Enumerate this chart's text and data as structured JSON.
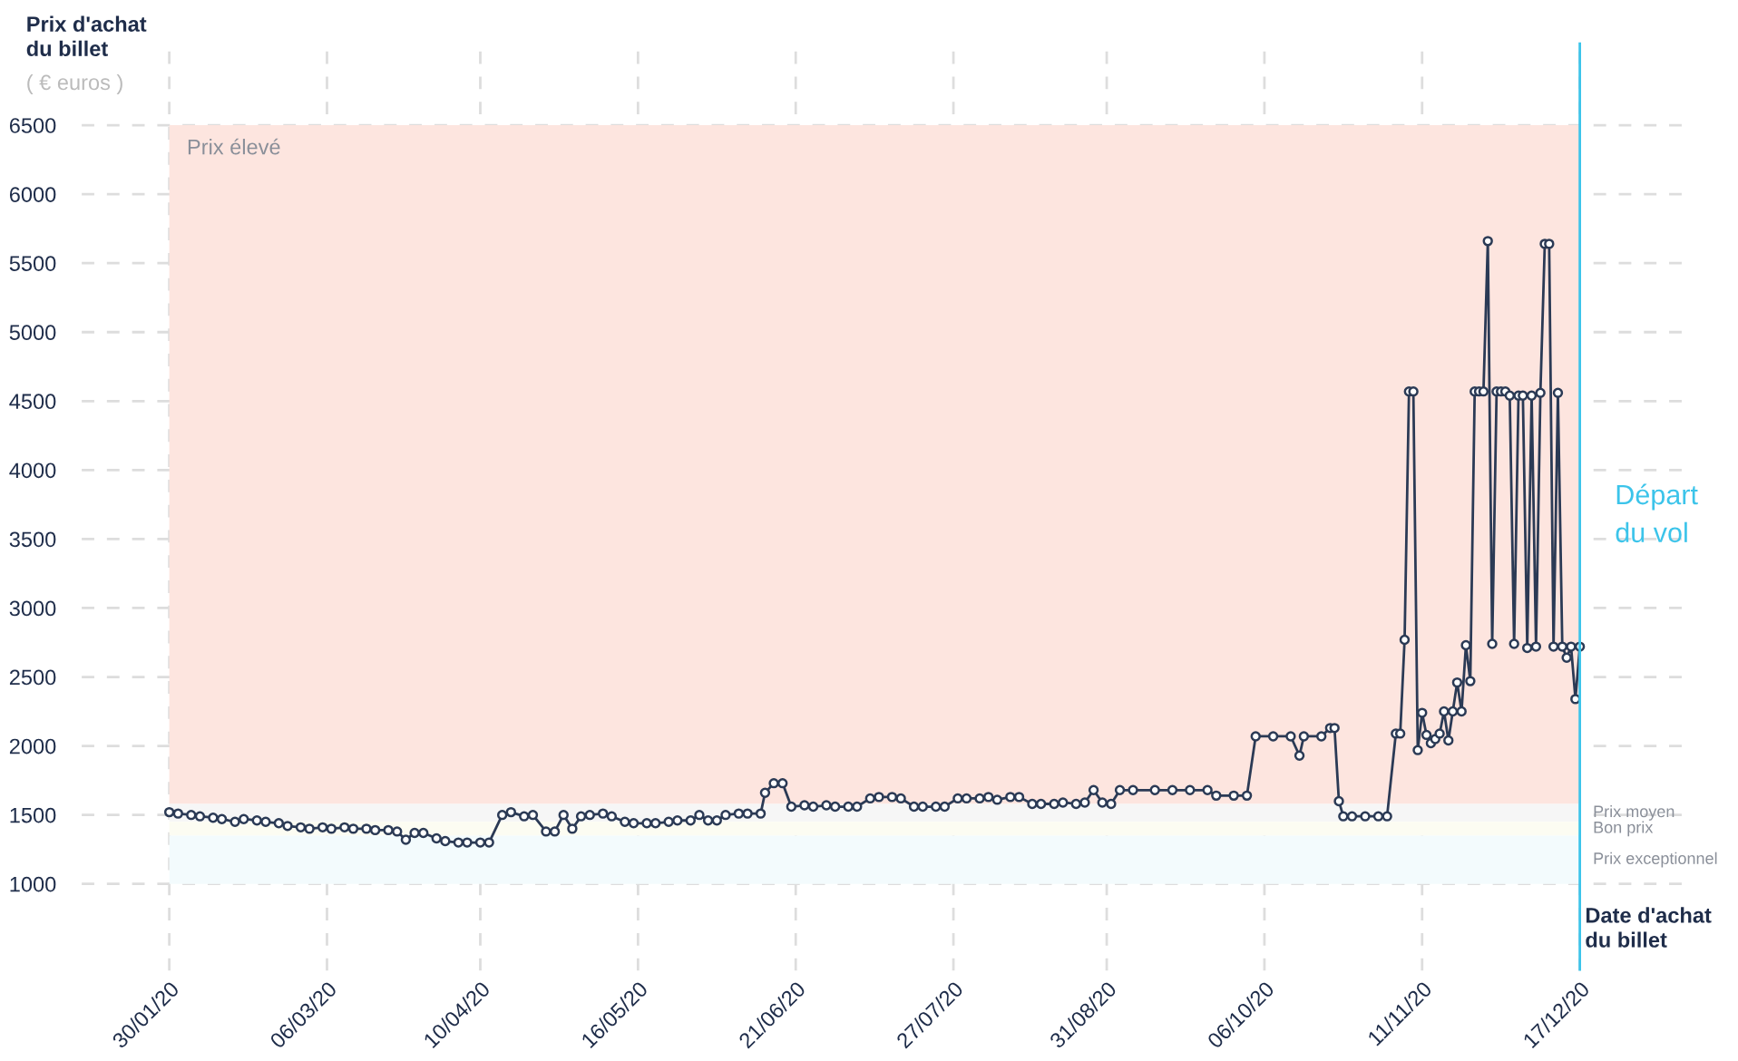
{
  "chart_data": {
    "type": "line",
    "ylabel": "Prix d'achat\ndu billet",
    "xlabel": "Date d'achat\ndu billet",
    "annotations": [
      "( € euros )"
    ],
    "x": [
      "2020-01-30",
      "2020-02-01",
      "2020-02-04",
      "2020-02-06",
      "2020-02-09",
      "2020-02-11",
      "2020-02-14",
      "2020-02-16",
      "2020-02-19",
      "2020-02-21",
      "2020-02-24",
      "2020-02-26",
      "2020-02-29",
      "2020-03-02",
      "2020-03-05",
      "2020-03-07",
      "2020-03-10",
      "2020-03-12",
      "2020-03-15",
      "2020-03-17",
      "2020-03-20",
      "2020-03-22",
      "2020-03-24",
      "2020-03-26",
      "2020-03-28",
      "2020-03-31",
      "2020-04-02",
      "2020-04-05",
      "2020-04-07",
      "2020-04-10",
      "2020-04-12",
      "2020-04-15",
      "2020-04-17",
      "2020-04-20",
      "2020-04-22",
      "2020-04-25",
      "2020-04-27",
      "2020-04-29",
      "2020-05-01",
      "2020-05-03",
      "2020-05-05",
      "2020-05-08",
      "2020-05-10",
      "2020-05-13",
      "2020-05-15",
      "2020-05-18",
      "2020-05-20",
      "2020-05-23",
      "2020-05-25",
      "2020-05-28",
      "2020-05-30",
      "2020-06-01",
      "2020-06-03",
      "2020-06-05",
      "2020-06-08",
      "2020-06-10",
      "2020-06-13",
      "2020-06-14",
      "2020-06-16",
      "2020-06-18",
      "2020-06-20",
      "2020-06-23",
      "2020-06-25",
      "2020-06-28",
      "2020-06-30",
      "2020-07-03",
      "2020-07-05",
      "2020-07-08",
      "2020-07-10",
      "2020-07-13",
      "2020-07-15",
      "2020-07-18",
      "2020-07-20",
      "2020-07-23",
      "2020-07-25",
      "2020-07-28",
      "2020-07-30",
      "2020-08-02",
      "2020-08-04",
      "2020-08-06",
      "2020-08-09",
      "2020-08-11",
      "2020-08-14",
      "2020-08-16",
      "2020-08-19",
      "2020-08-21",
      "2020-08-24",
      "2020-08-26",
      "2020-08-28",
      "2020-08-30",
      "2020-09-01",
      "2020-09-03",
      "2020-09-06",
      "2020-09-11",
      "2020-09-15",
      "2020-09-19",
      "2020-09-23",
      "2020-09-25",
      "2020-09-29",
      "2020-10-02",
      "2020-10-04",
      "2020-10-08",
      "2020-10-12",
      "2020-10-14",
      "2020-10-15",
      "2020-10-19",
      "2020-10-21",
      "2020-10-22",
      "2020-10-23",
      "2020-10-24",
      "2020-10-26",
      "2020-10-29",
      "2020-11-01",
      "2020-11-03",
      "2020-11-05",
      "2020-11-06",
      "2020-11-07",
      "2020-11-08",
      "2020-11-09",
      "2020-11-10",
      "2020-11-11",
      "2020-11-12",
      "2020-11-13",
      "2020-11-14",
      "2020-11-15",
      "2020-11-16",
      "2020-11-17",
      "2020-11-18",
      "2020-11-19",
      "2020-11-20",
      "2020-11-21",
      "2020-11-22",
      "2020-11-23",
      "2020-11-24",
      "2020-11-25",
      "2020-11-26",
      "2020-11-27",
      "2020-11-28",
      "2020-11-29",
      "2020-11-30",
      "2020-12-01",
      "2020-12-02",
      "2020-12-03",
      "2020-12-04",
      "2020-12-05",
      "2020-12-06",
      "2020-12-07",
      "2020-12-08",
      "2020-12-09",
      "2020-12-10",
      "2020-12-11",
      "2020-12-12",
      "2020-12-13",
      "2020-12-14",
      "2020-12-15",
      "2020-12-16",
      "2020-12-17"
    ],
    "series": [
      {
        "color": "#2b3a55",
        "values": [
          1520,
          1510,
          1500,
          1490,
          1480,
          1470,
          1450,
          1470,
          1460,
          1450,
          1440,
          1420,
          1410,
          1400,
          1410,
          1400,
          1410,
          1400,
          1400,
          1390,
          1390,
          1380,
          1320,
          1370,
          1370,
          1330,
          1310,
          1300,
          1300,
          1300,
          1300,
          1500,
          1520,
          1490,
          1500,
          1380,
          1380,
          1500,
          1400,
          1490,
          1500,
          1510,
          1490,
          1450,
          1440,
          1440,
          1440,
          1450,
          1460,
          1460,
          1500,
          1460,
          1460,
          1500,
          1510,
          1510,
          1510,
          1660,
          1730,
          1730,
          1560,
          1570,
          1560,
          1570,
          1560,
          1560,
          1560,
          1620,
          1630,
          1630,
          1620,
          1560,
          1560,
          1560,
          1560,
          1620,
          1620,
          1620,
          1630,
          1610,
          1630,
          1630,
          1580,
          1580,
          1580,
          1590,
          1580,
          1590,
          1680,
          1590,
          1580,
          1680,
          1680,
          1680,
          1680,
          1680,
          1680,
          1640,
          1640,
          1640,
          2070,
          2070,
          2070,
          1930,
          2070,
          2070,
          2130,
          2130,
          1600,
          1490,
          1490,
          1490,
          1490,
          1490,
          2090,
          2090,
          2770,
          4570,
          4570,
          1970,
          2240,
          2080,
          2020,
          2050,
          2090,
          2250,
          2040,
          2250,
          2460,
          2250,
          2730,
          2470,
          4570,
          4570,
          4570,
          5660,
          2740,
          4570,
          4570,
          4570,
          4540,
          2740,
          4540,
          4540,
          2710,
          4540,
          2720,
          4560,
          5640,
          5640,
          2720,
          4560,
          2720,
          2640,
          2720,
          2340,
          2720
        ]
      }
    ],
    "marker": "circle",
    "line_style": "solid",
    "xlim": [
      "2020-01-10",
      "2021-01-11"
    ],
    "xticks": [
      {
        "value": "2020-01-30",
        "label": "30/01/20"
      },
      {
        "value": "2020-03-06",
        "label": "06/03/20"
      },
      {
        "value": "2020-04-10",
        "label": "10/04/20"
      },
      {
        "value": "2020-05-16",
        "label": "16/05/20"
      },
      {
        "value": "2020-06-21",
        "label": "21/06/20"
      },
      {
        "value": "2020-07-27",
        "label": "27/07/20"
      },
      {
        "value": "2020-08-31",
        "label": "31/08/20"
      },
      {
        "value": "2020-10-06",
        "label": "06/10/20"
      },
      {
        "value": "2020-11-11",
        "label": "11/11/20"
      },
      {
        "value": "2020-12-17",
        "label": "17/12/20"
      }
    ],
    "ylim": [
      370,
      7100
    ],
    "yticks": [
      1000,
      1500,
      2000,
      2500,
      3000,
      3500,
      4000,
      4500,
      5000,
      5500,
      6000,
      6500
    ],
    "grid": true,
    "bands": [
      {
        "axis": "y",
        "from": 1580,
        "to": 6500,
        "label": "Prix élevé",
        "color": "#fde5df"
      },
      {
        "axis": "y",
        "from": 1450,
        "to": 1580,
        "label": "Prix moyen",
        "color": "#f6f6f6"
      },
      {
        "axis": "y",
        "from": 1350,
        "to": 1450,
        "label": "Bon prix",
        "color": "#fcfcf2"
      },
      {
        "axis": "y",
        "from": 1000,
        "to": 1350,
        "label": "Prix exceptionnel",
        "color": "#f3fbfd"
      }
    ],
    "ref_lines": [
      {
        "axis": "x",
        "value": "2020-12-17",
        "label": "Départ\ndu vol",
        "color": "#3cc4ea",
        "line_style": "solid"
      }
    ]
  }
}
